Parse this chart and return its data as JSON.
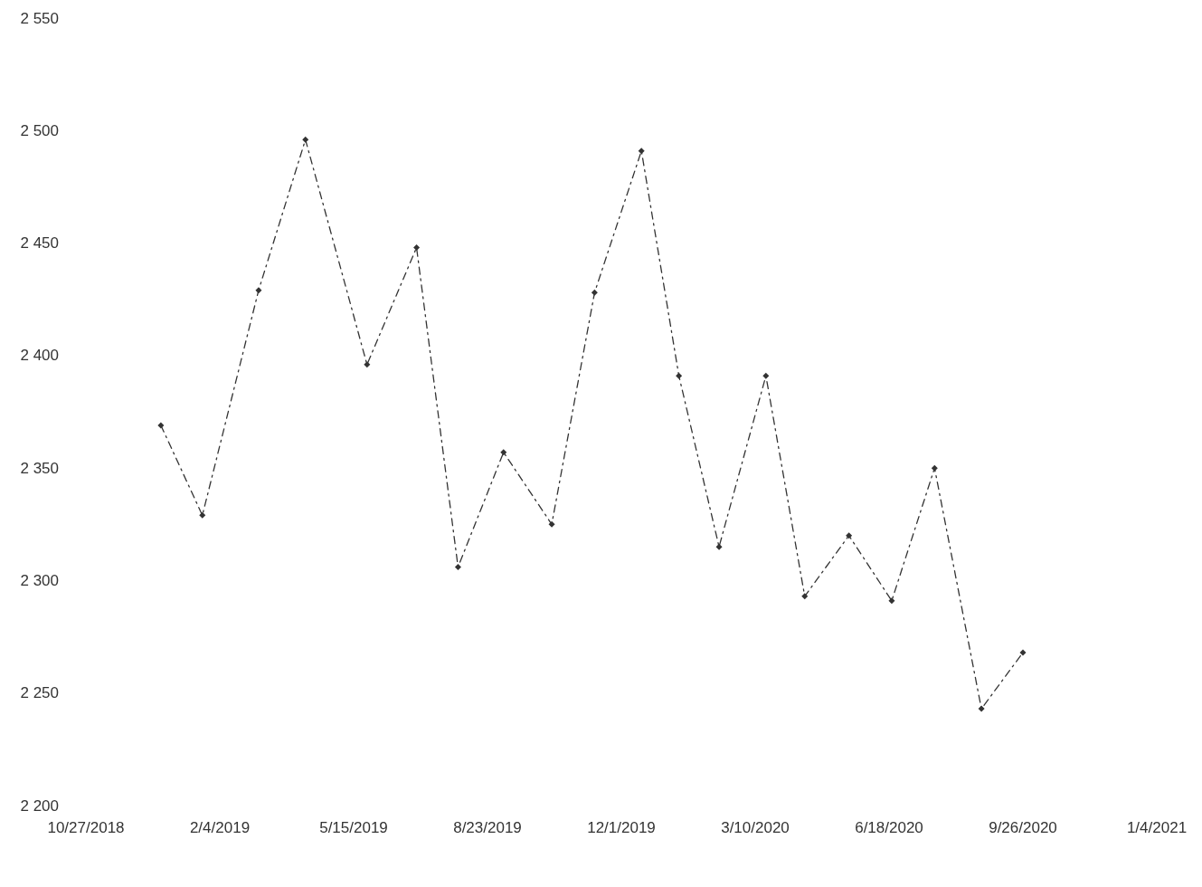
{
  "chart_data": {
    "type": "line",
    "x": [
      "2018-12-22",
      "2019-01-22",
      "2019-03-05",
      "2019-04-09",
      "2019-05-25",
      "2019-07-01",
      "2019-08-01",
      "2019-09-04",
      "2019-10-10",
      "2019-11-11",
      "2019-12-16",
      "2020-01-13",
      "2020-02-12",
      "2020-03-18",
      "2020-04-16",
      "2020-05-19",
      "2020-06-20",
      "2020-07-22",
      "2020-08-26",
      "2020-09-26"
    ],
    "series": [
      {
        "color": "#333333",
        "values": [
          2369,
          2329,
          2429,
          2496,
          2396,
          2448,
          2306,
          2357,
          2325,
          2428,
          2491,
          2391,
          2315,
          2391,
          2293,
          2320,
          2291,
          2350,
          2243,
          2268
        ]
      }
    ],
    "xlim": [
      "2018-10-27",
      "2021-01-04"
    ],
    "xticks": [
      {
        "value": "2018-10-27",
        "label": "10/27/2018"
      },
      {
        "value": "2019-02-04",
        "label": "2/4/2019"
      },
      {
        "value": "2019-05-15",
        "label": "5/15/2019"
      },
      {
        "value": "2019-08-23",
        "label": "8/23/2019"
      },
      {
        "value": "2019-12-01",
        "label": "12/1/2019"
      },
      {
        "value": "2020-03-10",
        "label": "3/10/2020"
      },
      {
        "value": "2020-06-18",
        "label": "6/18/2020"
      },
      {
        "value": "2020-09-26",
        "label": "9/26/2020"
      },
      {
        "value": "2021-01-04",
        "label": "1/4/2021"
      }
    ],
    "ylim": [
      2200,
      2550
    ],
    "yticks": [
      {
        "value": 2200,
        "label": "2 200"
      },
      {
        "value": 2250,
        "label": "2 250"
      },
      {
        "value": 2300,
        "label": "2 300"
      },
      {
        "value": 2350,
        "label": "2 350"
      },
      {
        "value": 2400,
        "label": "2 400"
      },
      {
        "value": 2450,
        "label": "2 450"
      },
      {
        "value": 2500,
        "label": "2 500"
      },
      {
        "value": 2550,
        "label": "2 550"
      }
    ],
    "grid": false,
    "marker": "diamond",
    "line_style": "dashed"
  }
}
